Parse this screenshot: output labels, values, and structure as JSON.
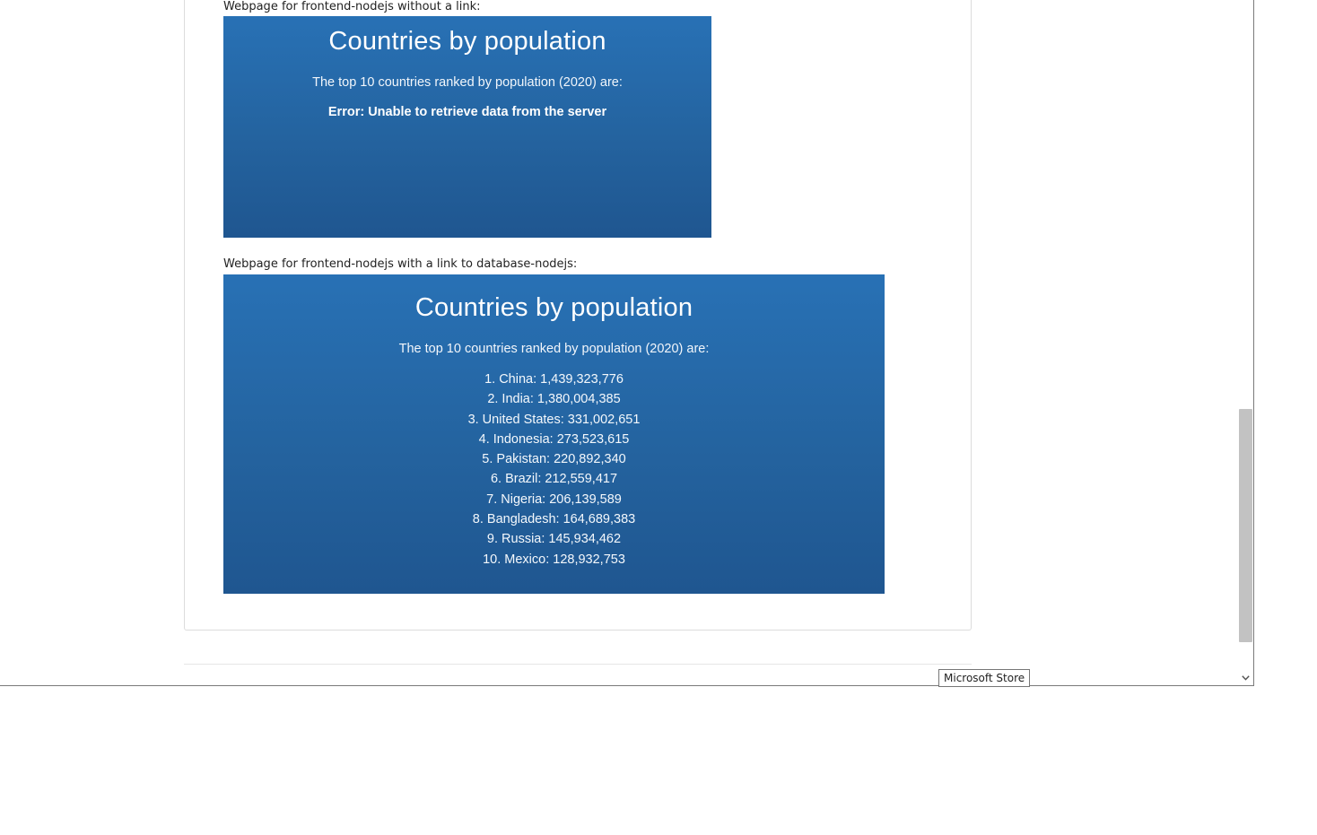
{
  "captions": {
    "without_link": "Webpage for frontend-nodejs without a link:",
    "with_link": "Webpage for frontend-nodejs with a link to database-nodejs:"
  },
  "screenshot_without_link": {
    "title": "Countries by population",
    "subtitle": "The top 10 countries ranked by population (2020) are:",
    "error": "Error: Unable to retrieve data from the server"
  },
  "screenshot_with_link": {
    "title": "Countries by population",
    "subtitle": "The top 10 countries ranked by population (2020) are:",
    "countries": [
      "1. China: 1,439,323,776",
      "2. India: 1,380,004,385",
      "3. United States: 331,002,651",
      "4. Indonesia: 273,523,615",
      "5. Pakistan: 220,892,340",
      "6. Brazil: 212,559,417",
      "7. Nigeria: 206,139,589",
      "8. Bangladesh: 164,689,383",
      "9. Russia: 145,934,462",
      "10. Mexico: 128,932,753"
    ]
  },
  "tooltip": {
    "label": "Microsoft Store"
  },
  "icons": {
    "scroll_down": "chevron-down-icon"
  },
  "colors": {
    "app_background": "#2871b5",
    "app_background_dark": "#1f5690",
    "scrollbar_thumb": "#c2c2c2"
  }
}
